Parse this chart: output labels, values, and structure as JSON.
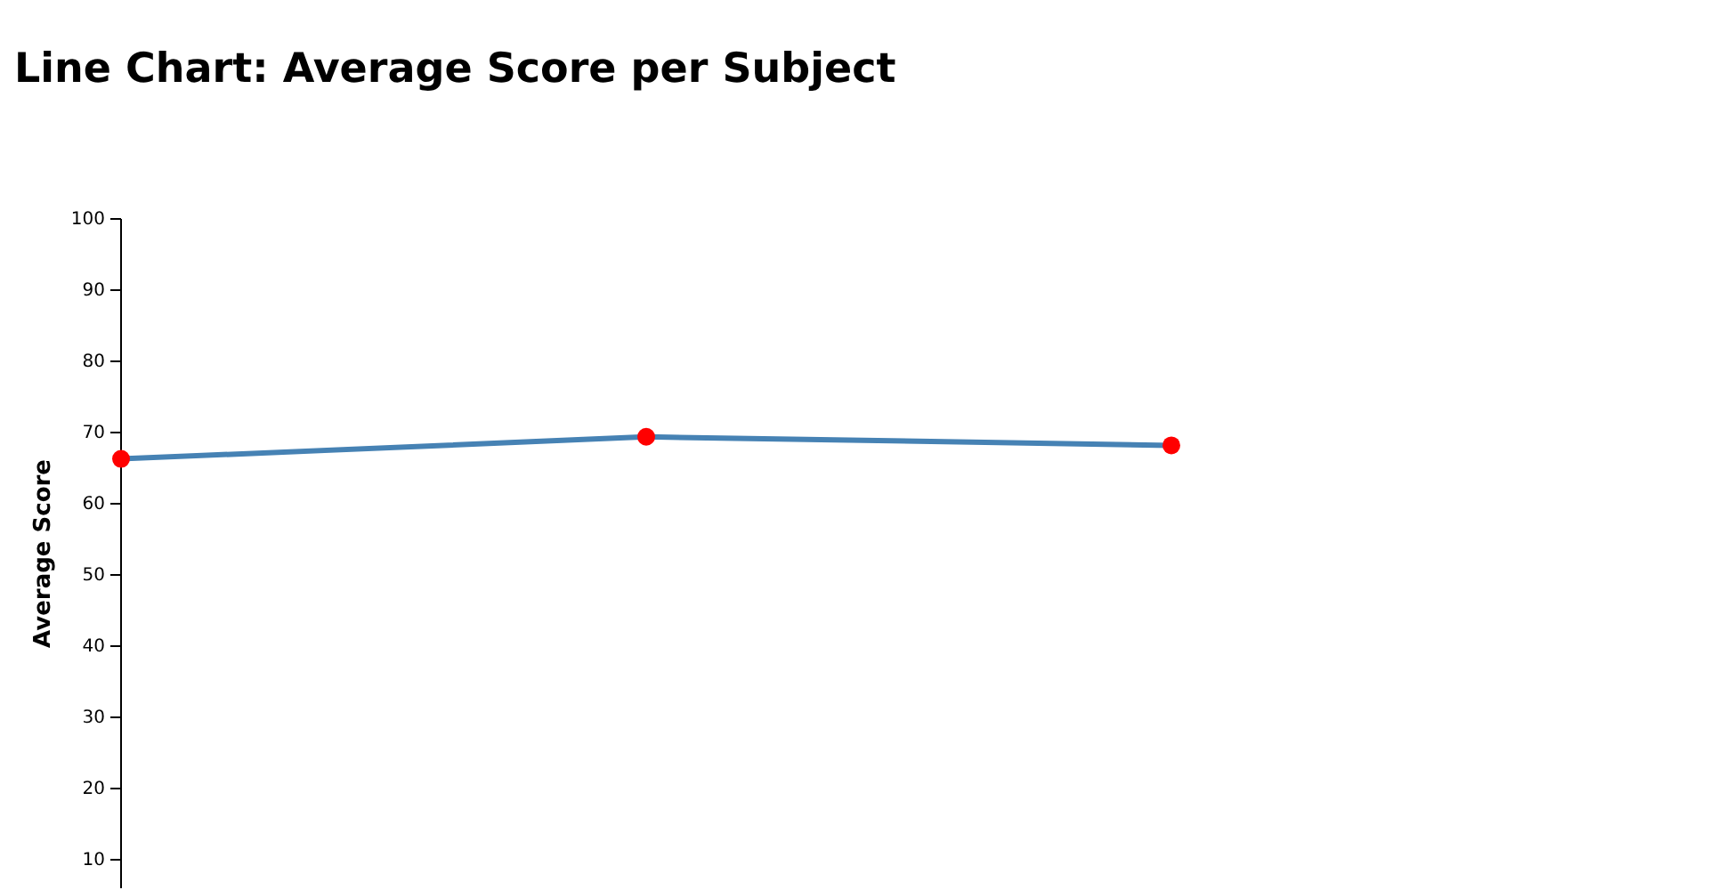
{
  "chart_data": {
    "type": "line",
    "title": "Line Chart: Average Score per Subject",
    "ylabel": "Average Score",
    "categories": [
      null,
      null,
      null
    ],
    "series": [
      {
        "color": "#4682b4",
        "colors": [
          "#ff0000",
          "#ff0000",
          "#ff0000"
        ],
        "values": [
          66.3,
          69.4,
          68.2
        ]
      }
    ],
    "ylim": [
      6,
      100
    ],
    "yticks": [
      10,
      20,
      30,
      40,
      50,
      60,
      70,
      80,
      90,
      100
    ],
    "marker": "circle"
  }
}
